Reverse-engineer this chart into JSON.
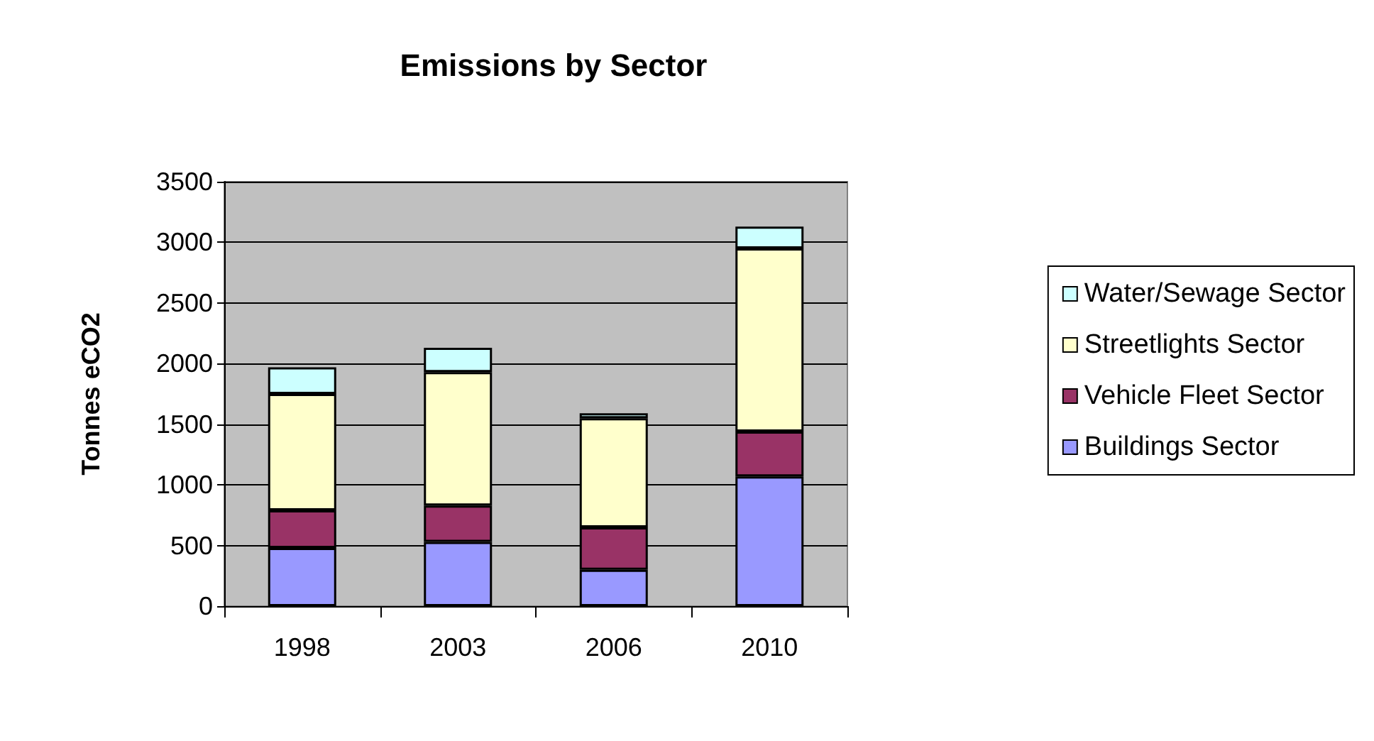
{
  "chart_data": {
    "type": "bar",
    "title": "Emissions by Sector",
    "ylabel": "Tonnes eCO2",
    "categories": [
      "1998",
      "2003",
      "2006",
      "2010"
    ],
    "series": [
      {
        "name": "Buildings Sector",
        "color": "#9999ff",
        "values": [
          480,
          530,
          300,
          1070
        ]
      },
      {
        "name": "Vehicle Fleet Sector",
        "color": "#993366",
        "values": [
          310,
          300,
          350,
          370
        ]
      },
      {
        "name": "Streetlights Sector",
        "color": "#ffffcc",
        "values": [
          960,
          1100,
          900,
          1510
        ]
      },
      {
        "name": "Water/Sewage Sector",
        "color": "#ccffff",
        "values": [
          220,
          200,
          40,
          180
        ]
      }
    ],
    "stacked": true,
    "ylim": [
      0,
      3500
    ],
    "yticks": [
      0,
      500,
      1000,
      1500,
      2000,
      2500,
      3000,
      3500
    ],
    "grid": "y",
    "legend": "right"
  }
}
